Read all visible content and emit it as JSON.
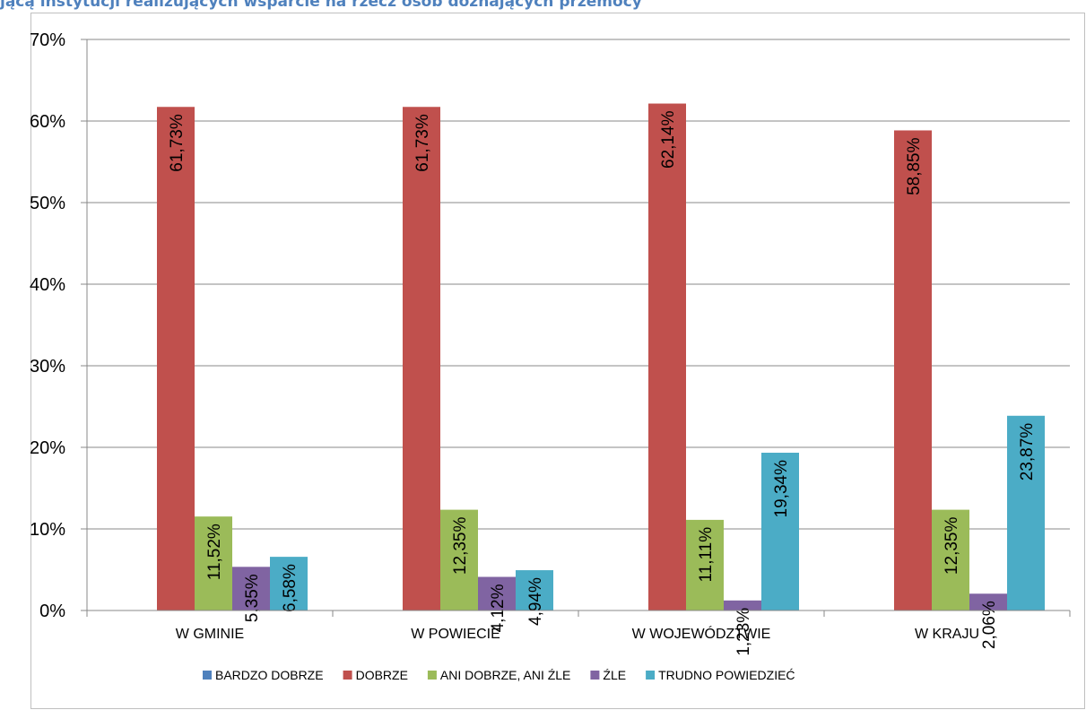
{
  "caption": "jącą instytucji realizujących wsparcie na rzecz osób doznających przemocy",
  "chart_data": {
    "type": "bar",
    "categories": [
      "W GMINIE",
      "W POWIECIE",
      "W WOJEWÓDZTWIE",
      "W KRAJU"
    ],
    "ylim": [
      0,
      70
    ],
    "yticks": [
      "0%",
      "10%",
      "20%",
      "30%",
      "40%",
      "50%",
      "60%",
      "70%"
    ],
    "grid": true,
    "legend_position": "bottom",
    "series": [
      {
        "name": "BARDZO DOBRZE",
        "color": "#4f81bd",
        "values": [
          0,
          0,
          0,
          0
        ],
        "labels": [
          "",
          "",
          "",
          ""
        ]
      },
      {
        "name": "DOBRZE",
        "color": "#c0504d",
        "values": [
          61.73,
          61.73,
          62.14,
          58.85
        ],
        "labels": [
          "61,73%",
          "61,73%",
          "62,14%",
          "58,85%"
        ]
      },
      {
        "name": "ANI DOBRZE, ANI ŹLE",
        "color": "#9bbb59",
        "values": [
          11.52,
          12.35,
          11.11,
          12.35
        ],
        "labels": [
          "11,52%",
          "12,35%",
          "11,11%",
          "12,35%"
        ]
      },
      {
        "name": "ŹLE",
        "color": "#8064a2",
        "values": [
          5.35,
          4.12,
          1.23,
          2.06
        ],
        "labels": [
          "5,35%",
          "4,12%",
          "1,23%",
          "2,06%"
        ]
      },
      {
        "name": "TRUDNO POWIEDZIEĆ",
        "color": "#4bacc6",
        "values": [
          6.58,
          4.94,
          19.34,
          23.87
        ],
        "labels": [
          "6,58%",
          "4,94%",
          "19,34%",
          "23,87%"
        ]
      }
    ]
  }
}
